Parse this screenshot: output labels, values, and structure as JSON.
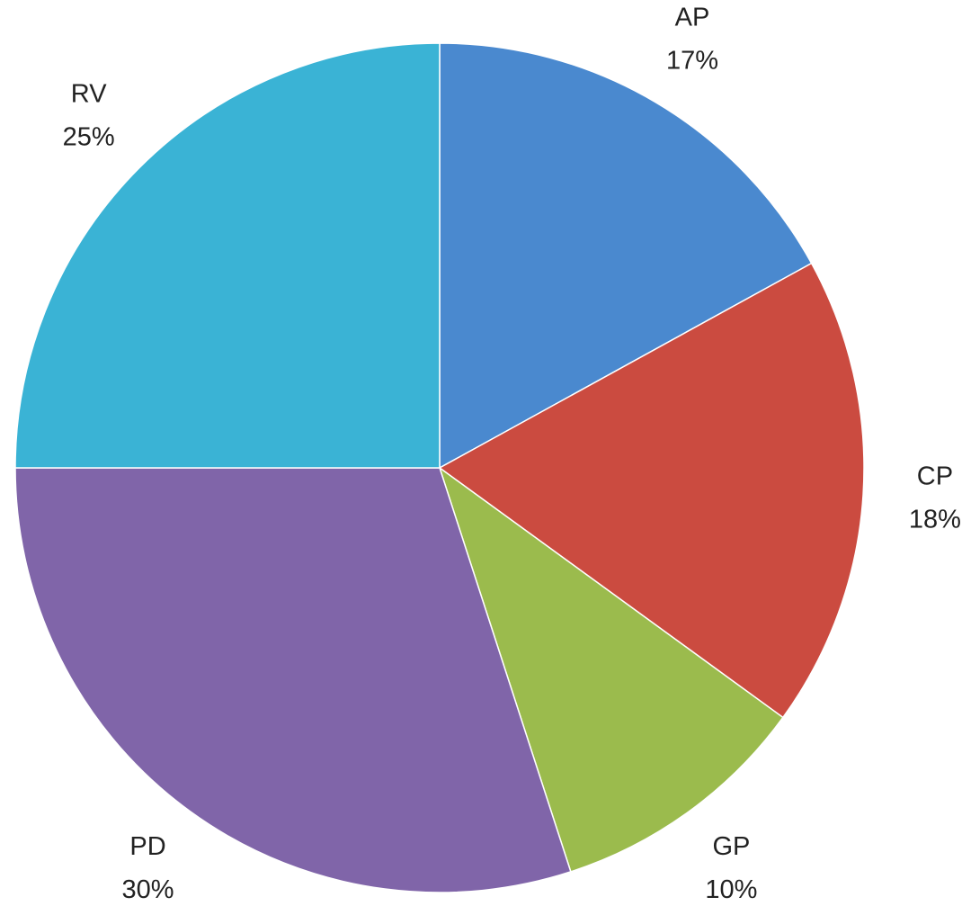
{
  "chart_data": {
    "type": "pie",
    "categories": [
      "AP",
      "CP",
      "GP",
      "PD",
      "RV"
    ],
    "values": [
      17,
      18,
      10,
      30,
      25
    ],
    "value_labels": [
      "17%",
      "18%",
      "10%",
      "30%",
      "25%"
    ],
    "colors": [
      "#4a89cf",
      "#cb4b40",
      "#9bbb4d",
      "#8065a9",
      "#3ab3d5"
    ]
  }
}
